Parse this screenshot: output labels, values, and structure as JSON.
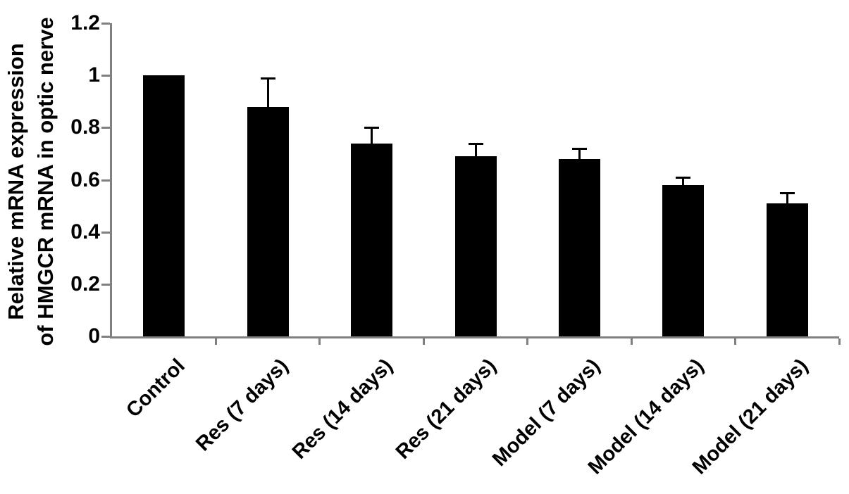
{
  "chart_data": {
    "type": "bar",
    "title": "",
    "xlabel": "",
    "ylabel": "Relative mRNA expression of HMGCR mRNA in optic nerve",
    "ylabel_lines": [
      "Relative mRNA expression",
      "of HMGCR mRNA in optic nerve"
    ],
    "categories": [
      "Control",
      "Res (7 days)",
      "Res (14 days)",
      "Res (21 days)",
      "Model (7 days)",
      "Model (14 days)",
      "Model (21 days)"
    ],
    "values": [
      1.0,
      0.88,
      0.74,
      0.69,
      0.68,
      0.58,
      0.51
    ],
    "errors": [
      null,
      0.11,
      0.06,
      0.05,
      0.04,
      0.03,
      0.04
    ],
    "ytick_labels": [
      "0",
      "0.2",
      "0.4",
      "0.6",
      "0.8",
      "1",
      "1.2"
    ],
    "ytick_values": [
      0,
      0.2,
      0.4,
      0.6,
      0.8,
      1,
      1.2
    ],
    "ylim": [
      0,
      1.2
    ],
    "grid": false,
    "legend": null,
    "bar_color": "#000000",
    "error_bar_color": "#000000",
    "axis_color": "#808080",
    "text_color": "#000000"
  }
}
